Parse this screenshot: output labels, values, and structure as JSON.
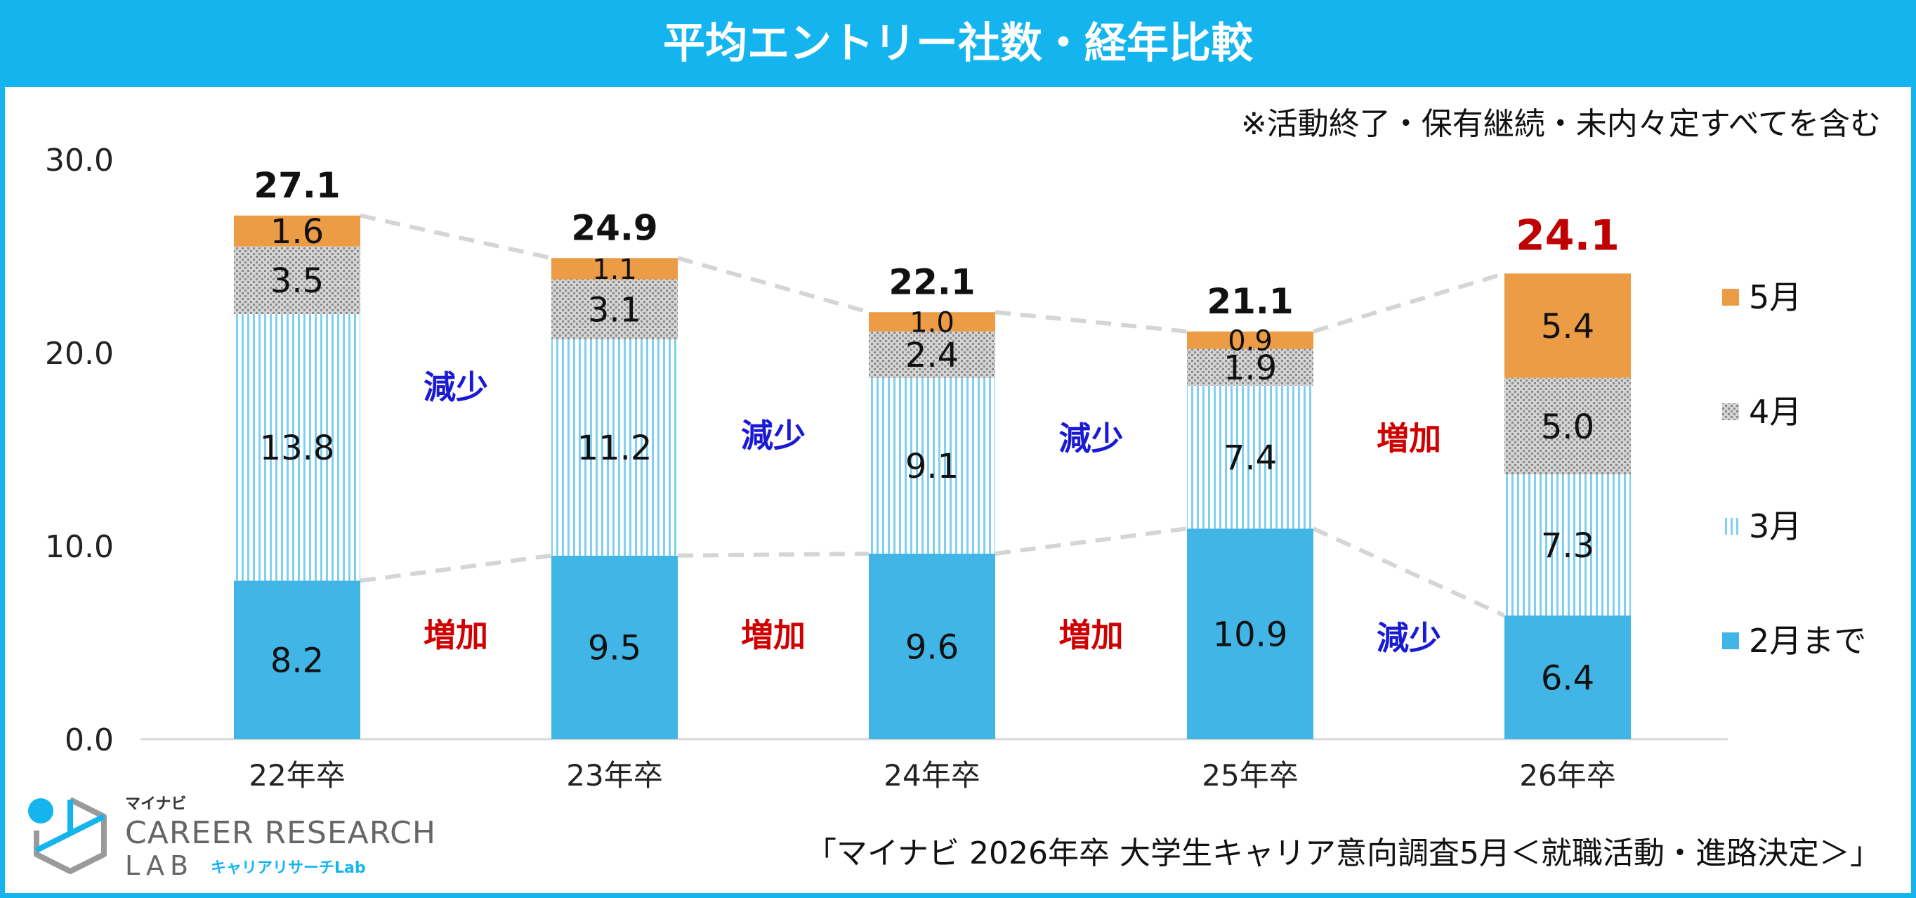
{
  "title": "平均エントリー社数・経年比較",
  "note": "※活動終了・保有継続・未内々定すべてを含む",
  "source": "「マイナビ 2026年卒 大学生キャリア意向調査5月＜就職活動・進路決定＞」",
  "logo": {
    "brand": "マイナビ",
    "name": "CAREER RESEARCH",
    "lab": "LAB",
    "sub": "キャリアリサーチLab"
  },
  "colors": {
    "feb": "#41b6e6",
    "mar": "#7fd0f0",
    "apr": "#9a9a9a",
    "may": "#ec9c44",
    "increase": "#d00000",
    "decrease": "#1a1ad4",
    "highlight_total": "#c00000",
    "title_bar": "#14b5ee"
  },
  "chart_data": {
    "type": "bar",
    "stacked": true,
    "categories": [
      "22年卒",
      "23年卒",
      "24年卒",
      "25年卒",
      "26年卒"
    ],
    "series": [
      {
        "name": "2月まで",
        "values": [
          8.2,
          9.5,
          9.6,
          10.9,
          6.4
        ],
        "labels": [
          "8.2",
          "9.5",
          "9.6",
          "10.9",
          "6.4"
        ]
      },
      {
        "name": "3月",
        "values": [
          13.8,
          11.2,
          9.1,
          7.4,
          7.3
        ],
        "labels": [
          "13.8",
          "11.2",
          "9.1",
          "7.4",
          "7.3"
        ]
      },
      {
        "name": "4月",
        "values": [
          3.5,
          3.1,
          2.4,
          1.9,
          5.0
        ],
        "labels": [
          "3.5",
          "3.1",
          "2.4",
          "1.9",
          "5.0"
        ]
      },
      {
        "name": "5月",
        "values": [
          1.6,
          1.1,
          1.0,
          0.9,
          5.4
        ],
        "labels": [
          "1.6",
          "1.1",
          "1.0",
          "0.9",
          "5.4"
        ]
      }
    ],
    "totals": [
      "27.1",
      "24.9",
      "22.1",
      "21.1",
      "24.1"
    ],
    "total_values": [
      27.1,
      24.9,
      22.1,
      21.1,
      24.1
    ],
    "ylim": [
      0,
      30
    ],
    "yticks": [
      "0.0",
      "10.0",
      "20.0",
      "30.0"
    ],
    "ytick_values": [
      0,
      10,
      20,
      30
    ],
    "annotations_upper": [
      {
        "text": "減少",
        "trend": "decrease"
      },
      {
        "text": "減少",
        "trend": "decrease"
      },
      {
        "text": "減少",
        "trend": "decrease"
      },
      {
        "text": "増加",
        "trend": "increase"
      }
    ],
    "annotations_lower": [
      {
        "text": "増加",
        "trend": "increase"
      },
      {
        "text": "増加",
        "trend": "increase"
      },
      {
        "text": "増加",
        "trend": "increase"
      },
      {
        "text": "減少",
        "trend": "decrease"
      }
    ],
    "legend_position": "right",
    "legend_order": [
      "5月",
      "4月",
      "3月",
      "2月まで"
    ]
  }
}
